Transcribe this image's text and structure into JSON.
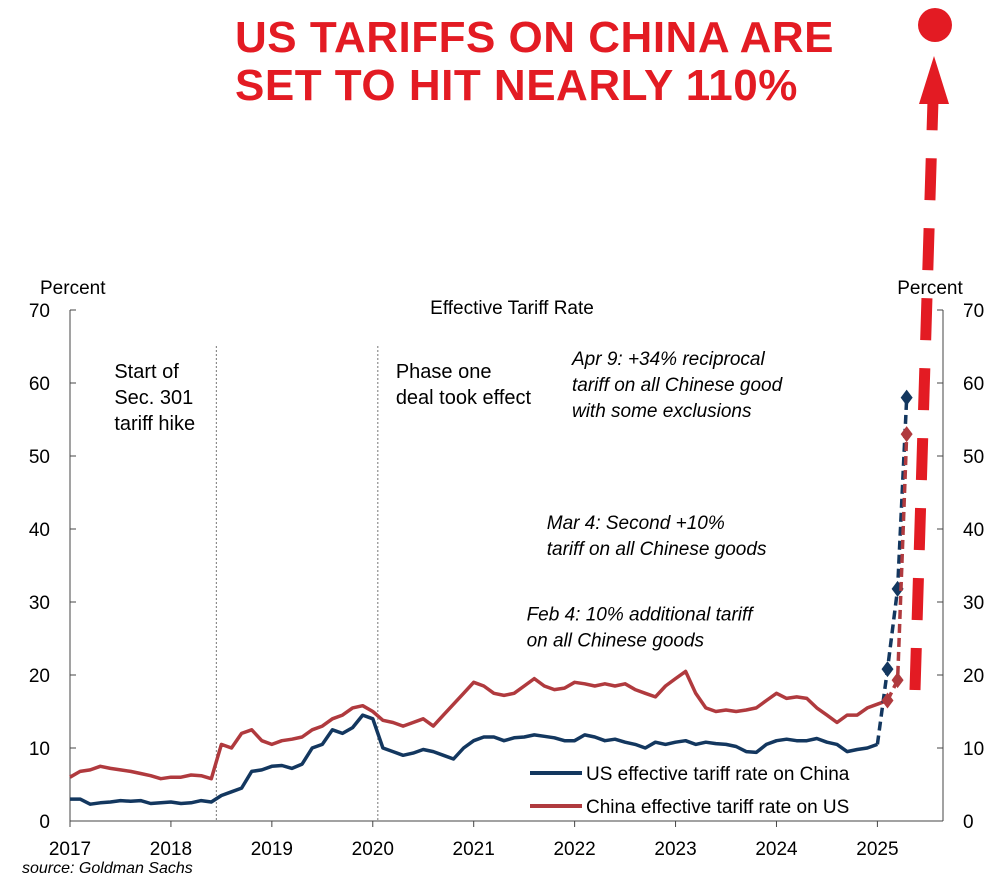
{
  "headline": {
    "line1": "US TARIFFS ON CHINA ARE",
    "line2": "SET TO HIT NEARLY 110%"
  },
  "source": "source: Goldman Sachs",
  "colors": {
    "headline": "#e31b23",
    "us_series": "#13375f",
    "china_series": "#b03a3e",
    "arrow": "#e31b23"
  },
  "chart_data": {
    "type": "line",
    "title": "Effective Tariff Rate",
    "ylabel_left": "Percent",
    "ylabel_right": "Percent",
    "ylim": [
      0,
      70
    ],
    "yticks": [
      0,
      10,
      20,
      30,
      40,
      50,
      60,
      70
    ],
    "xlim": [
      2017.0,
      2025.65
    ],
    "xticks": [
      2017,
      2018,
      2019,
      2020,
      2021,
      2022,
      2023,
      2024,
      2025
    ],
    "grid": false,
    "legend_position": "bottom-right",
    "series": [
      {
        "name": "US effective tariff rate on China",
        "color": "#13375f",
        "x": [
          2017.0,
          2017.1,
          2017.2,
          2017.3,
          2017.4,
          2017.5,
          2017.6,
          2017.7,
          2017.8,
          2017.9,
          2018.0,
          2018.1,
          2018.2,
          2018.3,
          2018.4,
          2018.5,
          2018.6,
          2018.7,
          2018.8,
          2018.9,
          2019.0,
          2019.1,
          2019.2,
          2019.3,
          2019.4,
          2019.5,
          2019.6,
          2019.7,
          2019.8,
          2019.9,
          2020.0,
          2020.1,
          2020.2,
          2020.3,
          2020.4,
          2020.5,
          2020.6,
          2020.7,
          2020.8,
          2020.9,
          2021.0,
          2021.1,
          2021.2,
          2021.3,
          2021.4,
          2021.5,
          2021.6,
          2021.7,
          2021.8,
          2021.9,
          2022.0,
          2022.1,
          2022.2,
          2022.3,
          2022.4,
          2022.5,
          2022.6,
          2022.7,
          2022.8,
          2022.9,
          2023.0,
          2023.1,
          2023.2,
          2023.3,
          2023.4,
          2023.5,
          2023.6,
          2023.7,
          2023.8,
          2023.9,
          2024.0,
          2024.1,
          2024.2,
          2024.3,
          2024.4,
          2024.5,
          2024.6,
          2024.7,
          2024.8,
          2024.9,
          2025.0
        ],
        "y": [
          3.0,
          3.0,
          2.3,
          2.5,
          2.6,
          2.8,
          2.7,
          2.8,
          2.4,
          2.5,
          2.6,
          2.4,
          2.5,
          2.8,
          2.6,
          3.5,
          4.0,
          4.5,
          6.8,
          7.0,
          7.5,
          7.6,
          7.2,
          7.8,
          10.0,
          10.5,
          12.5,
          12.0,
          12.8,
          14.5,
          14.0,
          10.0,
          9.5,
          9.0,
          9.3,
          9.8,
          9.5,
          9.0,
          8.5,
          10.0,
          11.0,
          11.5,
          11.5,
          11.0,
          11.4,
          11.5,
          11.8,
          11.6,
          11.4,
          11.0,
          11.0,
          11.8,
          11.5,
          11.0,
          11.2,
          10.8,
          10.5,
          10.0,
          10.8,
          10.5,
          10.8,
          11.0,
          10.5,
          10.8,
          10.6,
          10.5,
          10.2,
          9.5,
          9.4,
          10.5,
          11.0,
          11.2,
          11.0,
          11.0,
          11.3,
          10.8,
          10.5,
          9.5,
          9.8,
          10.0,
          10.5
        ]
      },
      {
        "name": "China effective tariff rate on US",
        "color": "#b03a3e",
        "x": [
          2017.0,
          2017.1,
          2017.2,
          2017.3,
          2017.4,
          2017.5,
          2017.6,
          2017.7,
          2017.8,
          2017.9,
          2018.0,
          2018.1,
          2018.2,
          2018.3,
          2018.4,
          2018.5,
          2018.6,
          2018.7,
          2018.8,
          2018.9,
          2019.0,
          2019.1,
          2019.2,
          2019.3,
          2019.4,
          2019.5,
          2019.6,
          2019.7,
          2019.8,
          2019.9,
          2020.0,
          2020.1,
          2020.2,
          2020.3,
          2020.4,
          2020.5,
          2020.6,
          2020.7,
          2020.8,
          2020.9,
          2021.0,
          2021.1,
          2021.2,
          2021.3,
          2021.4,
          2021.5,
          2021.6,
          2021.7,
          2021.8,
          2021.9,
          2022.0,
          2022.1,
          2022.2,
          2022.3,
          2022.4,
          2022.5,
          2022.6,
          2022.7,
          2022.8,
          2022.9,
          2023.0,
          2023.1,
          2023.2,
          2023.3,
          2023.4,
          2023.5,
          2023.6,
          2023.7,
          2023.8,
          2023.9,
          2024.0,
          2024.1,
          2024.2,
          2024.3,
          2024.4,
          2024.5,
          2024.6,
          2024.7,
          2024.8,
          2024.9,
          2025.0,
          2025.1
        ],
        "y": [
          6.0,
          6.8,
          7.0,
          7.5,
          7.2,
          7.0,
          6.8,
          6.5,
          6.2,
          5.8,
          6.0,
          6.0,
          6.3,
          6.2,
          5.8,
          10.5,
          10.0,
          12.0,
          12.5,
          11.0,
          10.5,
          11.0,
          11.2,
          11.5,
          12.5,
          13.0,
          14.0,
          14.5,
          15.5,
          15.8,
          15.0,
          13.8,
          13.5,
          13.0,
          13.5,
          14.0,
          13.0,
          14.5,
          16.0,
          17.5,
          19.0,
          18.5,
          17.5,
          17.2,
          17.5,
          18.5,
          19.5,
          18.5,
          18.0,
          18.2,
          19.0,
          18.8,
          18.5,
          18.8,
          18.5,
          18.8,
          18.0,
          17.5,
          17.0,
          18.5,
          19.5,
          20.5,
          17.5,
          15.5,
          15.0,
          15.2,
          15.0,
          15.2,
          15.5,
          16.5,
          17.5,
          16.8,
          17.0,
          16.8,
          15.5,
          14.5,
          13.5,
          14.5,
          14.5,
          15.5,
          16.0,
          16.5
        ]
      },
      {
        "name": "US projected",
        "color": "#13375f",
        "dashed": true,
        "x": [
          2025.0,
          2025.1,
          2025.2,
          2025.29
        ],
        "y": [
          10.5,
          20.8,
          31.8,
          58.0
        ]
      },
      {
        "name": "China projected",
        "color": "#b03a3e",
        "dashed": true,
        "x": [
          2025.1,
          2025.2,
          2025.29
        ],
        "y": [
          16.5,
          19.3,
          53.0
        ]
      }
    ],
    "legend": [
      {
        "label": "US effective tariff rate on China",
        "color": "#13375f"
      },
      {
        "label": "China effective tariff rate on US",
        "color": "#b03a3e"
      }
    ],
    "vlines": [
      {
        "x": 2018.45,
        "label": [
          "Start of",
          "Sec. 301",
          "tariff hike"
        ]
      },
      {
        "x": 2020.05,
        "label": [
          "Phase one",
          "deal took effect"
        ]
      }
    ],
    "annotations": [
      {
        "lines": [
          "Apr 9: +34% reciprocal",
          "tariff on all Chinese good",
          "with some exclusions"
        ],
        "x": 2024.55,
        "y": 62.5
      },
      {
        "lines": [
          "Mar 4: Second +10%",
          "tariff on all Chinese goods"
        ],
        "x": 2024.3,
        "y": 40.0
      },
      {
        "lines": [
          "Feb 4: 10% additional tariff",
          "on all Chinese goods"
        ],
        "x": 2024.1,
        "y": 27.5
      }
    ]
  }
}
